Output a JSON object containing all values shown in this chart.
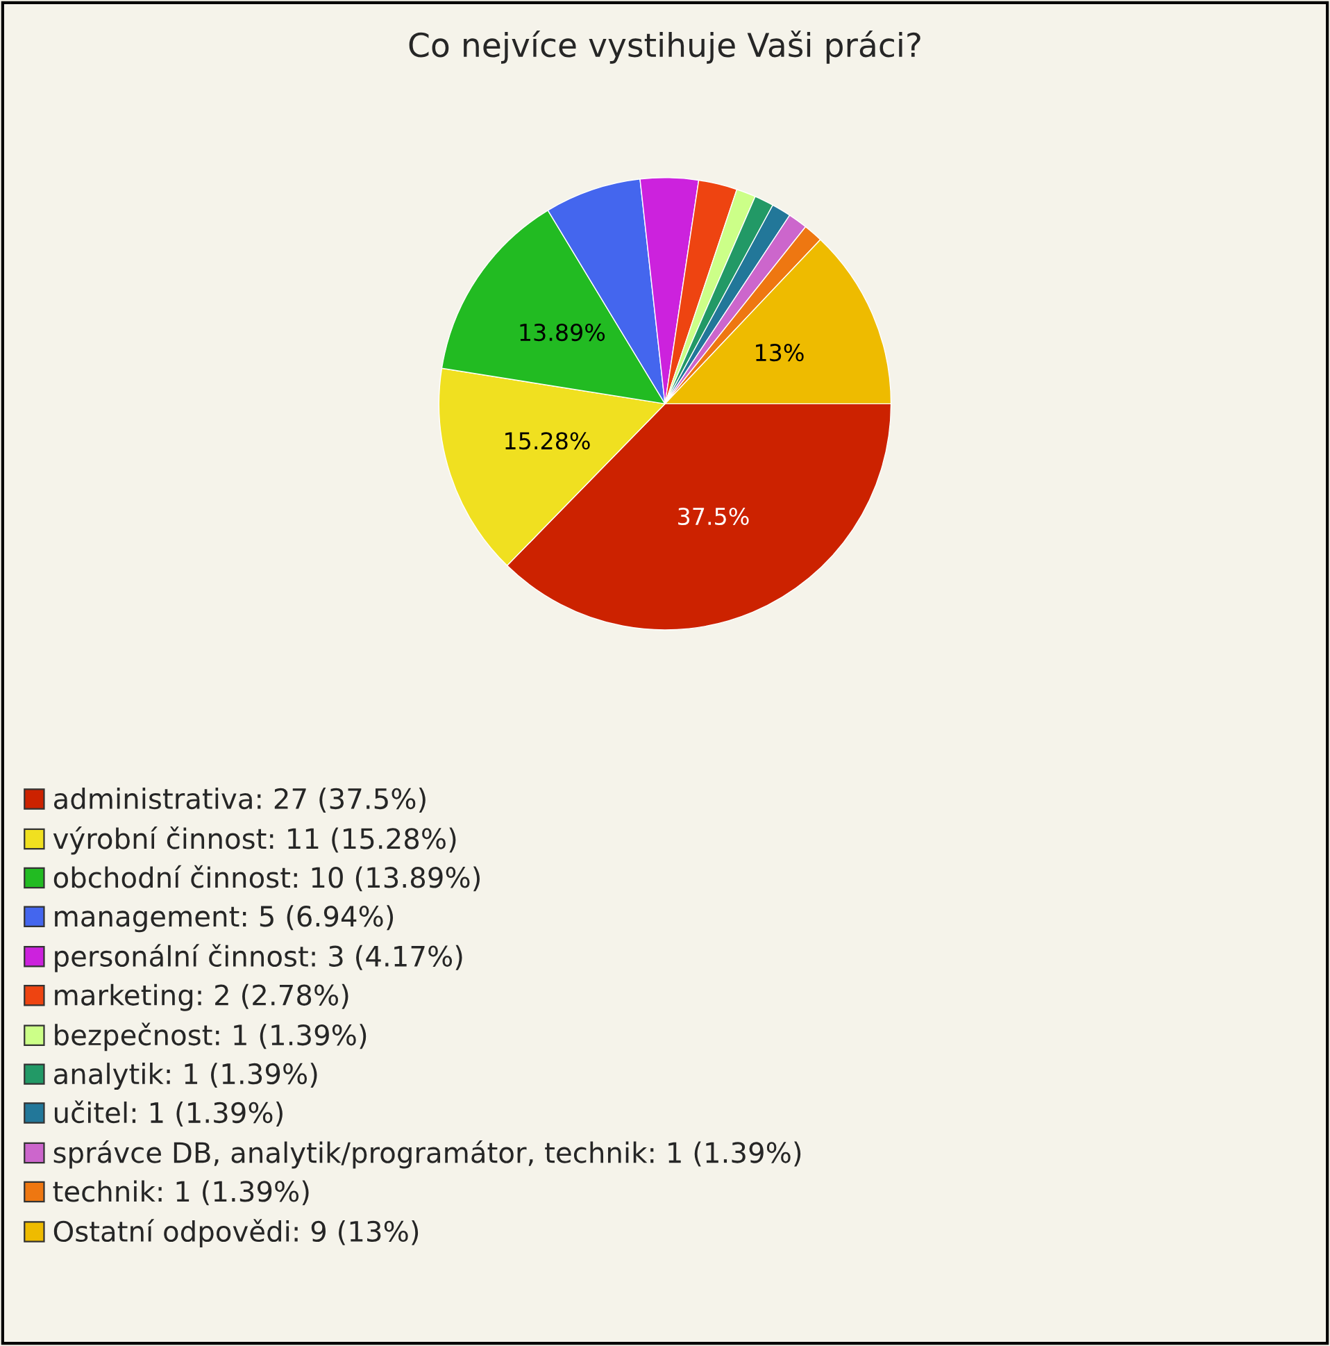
{
  "chart_data": {
    "type": "pie",
    "title": "Co nejvíce vystihuje Vaši práci?",
    "categories": [
      "administrativa: 27 (37.5%)",
      "výrobní činnost: 11 (15.28%)",
      "obchodní činnost: 10 (13.89%)",
      "management: 5 (6.94%)",
      "personální činnost: 3 (4.17%)",
      "marketing: 2 (2.78%)",
      "bezpečnost: 1 (1.39%)",
      "analytik: 1 (1.39%)",
      "učitel: 1 (1.39%)",
      "správce DB, analytik/programátor, technik: 1 (1.39%)",
      "technik: 1 (1.39%)",
      "Ostatní odpovědi: 9 (13%)"
    ],
    "values": [
      37.5,
      15.28,
      13.89,
      6.94,
      4.17,
      2.78,
      1.39,
      1.39,
      1.39,
      1.39,
      1.39,
      13
    ],
    "colors": [
      "#cc2200",
      "#f0e020",
      "#22bb22",
      "#4466ee",
      "#cc22dd",
      "#ee4411",
      "#ccff88",
      "#229966",
      "#227799",
      "#cc66cc",
      "#ee7711",
      "#eebb00"
    ],
    "value_labels": [
      "37.5%",
      "15.28%",
      "13.89%",
      null,
      null,
      null,
      null,
      null,
      null,
      null,
      null,
      "13%"
    ],
    "legend": "bottom left"
  }
}
